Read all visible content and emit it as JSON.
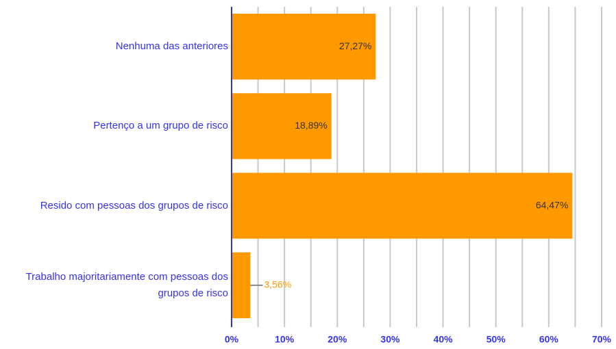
{
  "chart_data": {
    "type": "bar",
    "orientation": "horizontal",
    "categories": [
      "Nenhuma das anteriores",
      "Pertenço a um grupo de risco",
      "Resido com pessoas dos grupos de risco",
      "Trabalho majoritariamente com pessoas dos grupos de risco"
    ],
    "values": [
      27.27,
      18.89,
      64.47,
      3.56
    ],
    "value_labels": [
      "27,27%",
      "18,89%",
      "64,47%",
      "3,56%"
    ],
    "color": "#ff9900",
    "xlim": [
      0,
      70
    ],
    "xticks": [
      {
        "value": 0,
        "label": "0%"
      },
      {
        "value": 10,
        "label": "10%"
      },
      {
        "value": 20,
        "label": "20%"
      },
      {
        "value": 30,
        "label": "30%"
      },
      {
        "value": 40,
        "label": "40%"
      },
      {
        "value": 50,
        "label": "50%"
      },
      {
        "value": 60,
        "label": "60%"
      },
      {
        "value": 70,
        "label": "70%"
      }
    ],
    "minor_xticks": [
      5,
      15,
      25,
      35,
      45,
      55,
      65
    ],
    "grid": true
  }
}
